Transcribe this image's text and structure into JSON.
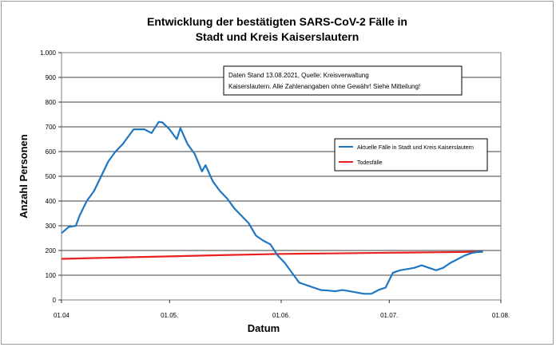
{
  "chart_data": {
    "type": "line",
    "title_line1": "Entwicklung der bestätigten SARS-CoV-2 Fälle in",
    "title_line2": "Stadt und Kreis Kaiserslautern",
    "xlabel": "Datum",
    "ylabel": "Anzahl Personen",
    "ylim": [
      0,
      1000
    ],
    "yticks": [
      0,
      100,
      200,
      300,
      400,
      500,
      600,
      700,
      800,
      900,
      1000
    ],
    "ytick_labels": [
      "0",
      "100",
      "200",
      "300",
      "400",
      "500",
      "600",
      "700",
      "800",
      "900",
      "1.000"
    ],
    "xlim": [
      "2021-04-01",
      "2021-08-01"
    ],
    "xticks": [
      "2021-04-01",
      "2021-05-01",
      "2021-06-01",
      "2021-07-01",
      "2021-08-01"
    ],
    "xtick_labels": [
      "01.04",
      "01.05.",
      "01.06.",
      "01.07.",
      "01.08."
    ],
    "grid": "horizontal",
    "legend_position": "right",
    "note_line1": "Daten Stand 13.08.2021, Quelle: Kreisverwaltung",
    "note_line2": "Kaiserslautern. Alle Zahlenangaben ohne Gewähr! Siehe Mitteilung!",
    "series": [
      {
        "name": "Aktuelle Fälle in Stadt und Kreis Kaiserslautern",
        "color": "#1f77c4",
        "x": [
          "2021-04-01",
          "2021-04-03",
          "2021-04-05",
          "2021-04-06",
          "2021-04-08",
          "2021-04-10",
          "2021-04-12",
          "2021-04-14",
          "2021-04-16",
          "2021-04-18",
          "2021-04-19",
          "2021-04-21",
          "2021-04-23",
          "2021-04-24",
          "2021-04-26",
          "2021-04-28",
          "2021-04-29",
          "2021-05-01",
          "2021-05-03",
          "2021-05-04",
          "2021-05-06",
          "2021-05-08",
          "2021-05-10",
          "2021-05-11",
          "2021-05-13",
          "2021-05-15",
          "2021-05-17",
          "2021-05-19",
          "2021-05-21",
          "2021-05-23",
          "2021-05-25",
          "2021-05-27",
          "2021-05-29",
          "2021-05-31",
          "2021-06-02",
          "2021-06-04",
          "2021-06-06",
          "2021-06-08",
          "2021-06-10",
          "2021-06-12",
          "2021-06-14",
          "2021-06-16",
          "2021-06-18",
          "2021-06-20",
          "2021-06-22",
          "2021-06-24",
          "2021-06-26",
          "2021-06-28",
          "2021-06-30",
          "2021-07-02",
          "2021-07-04",
          "2021-07-06",
          "2021-07-08",
          "2021-07-10",
          "2021-07-12",
          "2021-07-14",
          "2021-07-16",
          "2021-07-18",
          "2021-07-20",
          "2021-07-22",
          "2021-07-24",
          "2021-07-26",
          "2021-07-27"
        ],
        "values": [
          270,
          295,
          300,
          340,
          400,
          440,
          500,
          560,
          600,
          630,
          650,
          690,
          690,
          690,
          675,
          720,
          718,
          690,
          650,
          695,
          630,
          590,
          520,
          545,
          480,
          440,
          410,
          370,
          340,
          310,
          260,
          240,
          225,
          180,
          150,
          110,
          70,
          60,
          50,
          40,
          38,
          35,
          40,
          35,
          30,
          25,
          25,
          40,
          50,
          110,
          120,
          125,
          130,
          140,
          130,
          120,
          130,
          150,
          165,
          180,
          190,
          195,
          195
        ]
      },
      {
        "name": "Todesfälle",
        "color": "#e8201f",
        "x": [
          "2021-04-01",
          "2021-04-15",
          "2021-05-01",
          "2021-05-15",
          "2021-06-01",
          "2021-06-15",
          "2021-07-01",
          "2021-07-15",
          "2021-07-27"
        ],
        "values": [
          166,
          171,
          176,
          181,
          186,
          188,
          191,
          193,
          195
        ]
      }
    ]
  }
}
